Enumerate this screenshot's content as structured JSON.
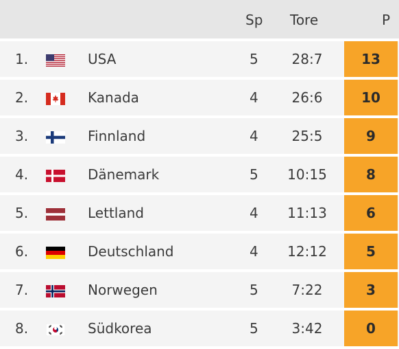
{
  "header": {
    "sp": "Sp",
    "tore": "Tore",
    "p": "P"
  },
  "rows": [
    {
      "rank": "1.",
      "flag": "usa-flag-icon",
      "team": "USA",
      "sp": "5",
      "tore": "28:7",
      "p": "13"
    },
    {
      "rank": "2.",
      "flag": "canada-flag-icon",
      "team": "Kanada",
      "sp": "4",
      "tore": "26:6",
      "p": "10"
    },
    {
      "rank": "3.",
      "flag": "finland-flag-icon",
      "team": "Finnland",
      "sp": "4",
      "tore": "25:5",
      "p": "9"
    },
    {
      "rank": "4.",
      "flag": "denmark-flag-icon",
      "team": "Dänemark",
      "sp": "5",
      "tore": "10:15",
      "p": "8"
    },
    {
      "rank": "5.",
      "flag": "latvia-flag-icon",
      "team": "Lettland",
      "sp": "4",
      "tore": "11:13",
      "p": "6"
    },
    {
      "rank": "6.",
      "flag": "germany-flag-icon",
      "team": "Deutschland",
      "sp": "4",
      "tore": "12:12",
      "p": "5"
    },
    {
      "rank": "7.",
      "flag": "norway-flag-icon",
      "team": "Norwegen",
      "sp": "5",
      "tore": "7:22",
      "p": "3"
    },
    {
      "rank": "8.",
      "flag": "south-korea-flag-icon",
      "team": "Südkorea",
      "sp": "5",
      "tore": "3:42",
      "p": "0"
    }
  ],
  "colors": {
    "points_bg": "#f7a428",
    "row_bg": "#f4f4f4",
    "header_bg": "#e6e6e6"
  }
}
